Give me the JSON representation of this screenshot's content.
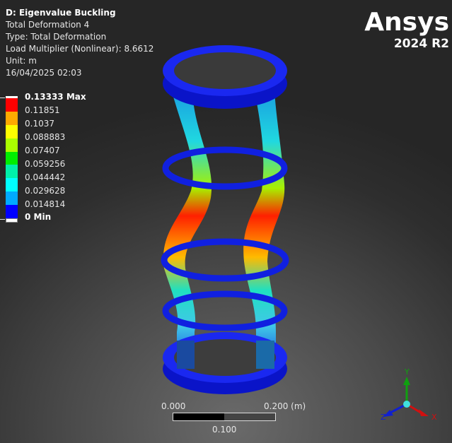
{
  "header": {
    "title": "D: Eigenvalue Buckling",
    "lines": [
      "Total Deformation 4",
      "Type: Total Deformation",
      "Load Multiplier (Nonlinear): 8.6612",
      "Unit: m",
      "16/04/2025 02:03"
    ]
  },
  "legend": {
    "labels": [
      "0.13333 Max",
      "0.11851",
      "0.1037",
      "0.088883",
      "0.07407",
      "0.059256",
      "0.044442",
      "0.029628",
      "0.014814",
      "0 Min"
    ],
    "colors": [
      "#ff0000",
      "#ffaa00",
      "#ffff00",
      "#aaff00",
      "#00ee00",
      "#00f0aa",
      "#00ffff",
      "#00aaff",
      "#0000ff"
    ]
  },
  "brand": {
    "name": "Ansys",
    "version": "2024 R2"
  },
  "scale_bar": {
    "left": "0.000",
    "right": "0.200 (m)",
    "middle": "0.100"
  },
  "triad": {
    "x": "X",
    "y": "Y",
    "z": "Z",
    "colors": {
      "x": "#d01010",
      "y": "#10a010",
      "z": "#1020d0"
    }
  }
}
